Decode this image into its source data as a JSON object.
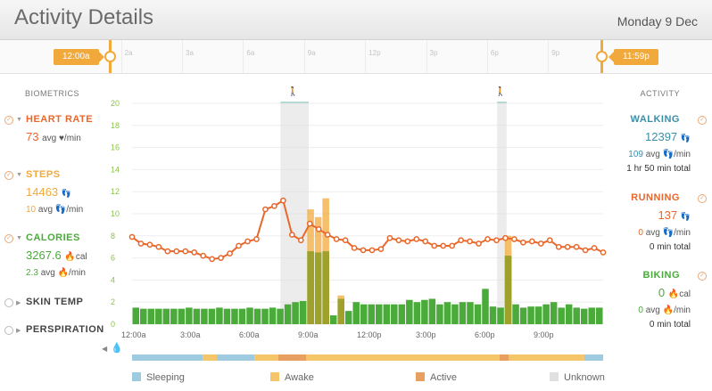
{
  "header": {
    "title": "Activity Details",
    "date": "Monday 9 Dec"
  },
  "timeline": {
    "start_label": "12:00a",
    "end_label": "11:59p",
    "ticks": [
      "2a",
      "3a",
      "6a",
      "9a",
      "12p",
      "3p",
      "6p",
      "9p"
    ]
  },
  "biometrics": {
    "heading": "BIOMETRICS",
    "heart_rate": {
      "name": "HEART RATE",
      "value": "73",
      "unit": "avg ♥/min",
      "color": "#e8672b"
    },
    "steps": {
      "name": "STEPS",
      "value": "14463",
      "value_icon": "👣",
      "avg": "10",
      "avg_unit": "avg 👣/min",
      "color": "#f2a93b"
    },
    "calories": {
      "name": "CALORIES",
      "value": "3267.6",
      "value_unit": "🔥cal",
      "avg": "2.3",
      "avg_unit": "avg 🔥/min",
      "color": "#4aaa3a"
    },
    "skin_temp": {
      "name": "SKIN TEMP"
    },
    "perspiration": {
      "name": "PERSPIRATION"
    }
  },
  "activity": {
    "heading": "ACTIVITY",
    "walking": {
      "name": "WALKING",
      "value": "12397",
      "value_icon": "👣",
      "avg": "109",
      "avg_unit": "avg 👣/min",
      "total": "1 hr 50 min total",
      "color": "#3a8fa8"
    },
    "running": {
      "name": "RUNNING",
      "value": "137",
      "value_icon": "👣",
      "avg": "0",
      "avg_unit": "avg 👣/min",
      "total": "0 min total",
      "color": "#e8672b"
    },
    "biking": {
      "name": "BIKING",
      "value": "0",
      "value_unit": "🔥cal",
      "avg": "0",
      "avg_unit": "avg 🔥/min",
      "total": "0 min total",
      "color": "#4aaa3a"
    }
  },
  "legend": [
    {
      "label": "Sleeping",
      "color": "#9fcbe0"
    },
    {
      "label": "Awake",
      "color": "#f5c56a"
    },
    {
      "label": "Active",
      "color": "#e8a060"
    },
    {
      "label": "Unknown",
      "color": "#e0e0e0"
    }
  ],
  "chart_data": {
    "type": "bar",
    "x_ticks": [
      "12:00a",
      "3:00a",
      "6:00a",
      "9:00a",
      "12:00p",
      "3:00p",
      "6:00p",
      "9:00p"
    ],
    "ylim": [
      0,
      20
    ],
    "y_ticks": [
      0,
      2,
      4,
      6,
      8,
      10,
      12,
      14,
      16,
      18,
      20
    ],
    "grid": true,
    "series": [
      {
        "values": [
          1.5,
          1.4,
          1.4,
          1.4,
          1.4,
          1.4,
          1.4,
          1.5,
          1.4,
          1.4,
          1.4,
          1.5,
          1.4,
          1.4,
          1.4,
          1.5,
          1.4,
          1.4,
          1.5,
          1.4,
          1.8,
          2.0,
          2.1,
          6.6,
          6.5,
          6.6,
          0.8,
          2.3,
          1.2,
          2.0,
          1.8,
          1.8,
          1.8,
          1.8,
          1.8,
          1.8,
          2.2,
          2.0,
          2.2,
          2.3,
          1.8,
          2.0,
          1.8,
          2.0,
          2.0,
          1.8,
          3.2,
          1.6,
          1.5,
          6.2,
          1.8,
          1.5,
          1.6,
          1.6,
          1.8,
          2.0,
          1.5,
          1.8,
          1.5,
          1.4,
          1.5,
          1.5
        ],
        "color": "#4aaa3a"
      },
      {
        "values": [
          0,
          0,
          0,
          0,
          0,
          0,
          0,
          0,
          0,
          0,
          0,
          0,
          0,
          0,
          0,
          0,
          0,
          0,
          0,
          0,
          0,
          0,
          0,
          3.8,
          3.2,
          4.8,
          0,
          0.3,
          0,
          0,
          0,
          0,
          0,
          0,
          0,
          0,
          0,
          0,
          0,
          0,
          0,
          0,
          0,
          0,
          0,
          0,
          0,
          0,
          0,
          1.8,
          0,
          0,
          0,
          0,
          0,
          0,
          0,
          0,
          0,
          0,
          0,
          0
        ],
        "color": "#f2a93b"
      },
      {
        "values": [
          7.9,
          7.3,
          7.2,
          7.0,
          6.6,
          6.6,
          6.6,
          6.5,
          6.2,
          5.9,
          6.0,
          6.4,
          7.1,
          7.5,
          7.7,
          10.4,
          10.7,
          11.2,
          8.1,
          7.6,
          9.1,
          8.6,
          8.1,
          7.7,
          7.6,
          6.9,
          6.7,
          6.7,
          6.8,
          7.8,
          7.6,
          7.5,
          7.7,
          7.5,
          7.1,
          7.1,
          7.1,
          7.6,
          7.5,
          7.3,
          7.7,
          7.6,
          7.8,
          7.7,
          7.4,
          7.5,
          7.3,
          7.6,
          7.0,
          7.0,
          7.0,
          6.7,
          6.9,
          6.5
        ],
        "color": "#e8672b"
      }
    ],
    "timeline_segments": [
      {
        "state": "Sleeping",
        "from": 0,
        "to": 0.15
      },
      {
        "state": "Awake",
        "from": 0.15,
        "to": 0.18
      },
      {
        "state": "Sleeping",
        "from": 0.18,
        "to": 0.26
      },
      {
        "state": "Awake",
        "from": 0.26,
        "to": 0.31
      },
      {
        "state": "Active",
        "from": 0.31,
        "to": 0.37
      },
      {
        "state": "Awake",
        "from": 0.37,
        "to": 0.78
      },
      {
        "state": "Active",
        "from": 0.78,
        "to": 0.8
      },
      {
        "state": "Awake",
        "from": 0.8,
        "to": 0.96
      },
      {
        "state": "Sleeping",
        "from": 0.96,
        "to": 1.0
      }
    ],
    "highlight_bands": [
      {
        "from": 0.315,
        "to": 0.375
      },
      {
        "from": 0.775,
        "to": 0.795
      }
    ]
  }
}
